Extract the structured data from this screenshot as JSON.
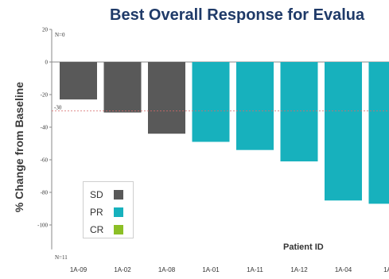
{
  "chart_data": {
    "type": "bar",
    "title": "Best Overall Response for Evalua",
    "xlabel": "Patient ID",
    "ylabel": "% Change from Baseline",
    "ylim": [
      -115,
      20
    ],
    "yticks": [
      20,
      0,
      -20,
      -40,
      -60,
      -80,
      -100
    ],
    "categories": [
      "1A-09",
      "1A-02",
      "1A-08",
      "1A-01",
      "1A-11",
      "1A-12",
      "1A-04",
      "1A"
    ],
    "values": [
      -23,
      -31,
      -44,
      -49,
      -54,
      -61,
      -85,
      -87
    ],
    "response": [
      "SD",
      "SD",
      "SD",
      "PR",
      "PR",
      "PR",
      "PR",
      "PR"
    ],
    "reference_line": {
      "value": -30,
      "label": "-30",
      "style": "dashed",
      "color": "#d86a6a"
    },
    "annotations": {
      "top": "N=0",
      "bottom": "N=11"
    },
    "legend": [
      {
        "label": "SD",
        "color": "#595959"
      },
      {
        "label": "PR",
        "color": "#17b1bd"
      },
      {
        "label": "CR",
        "color": "#8cbf26"
      }
    ],
    "legend_position": "bottom-left",
    "grid": false
  }
}
